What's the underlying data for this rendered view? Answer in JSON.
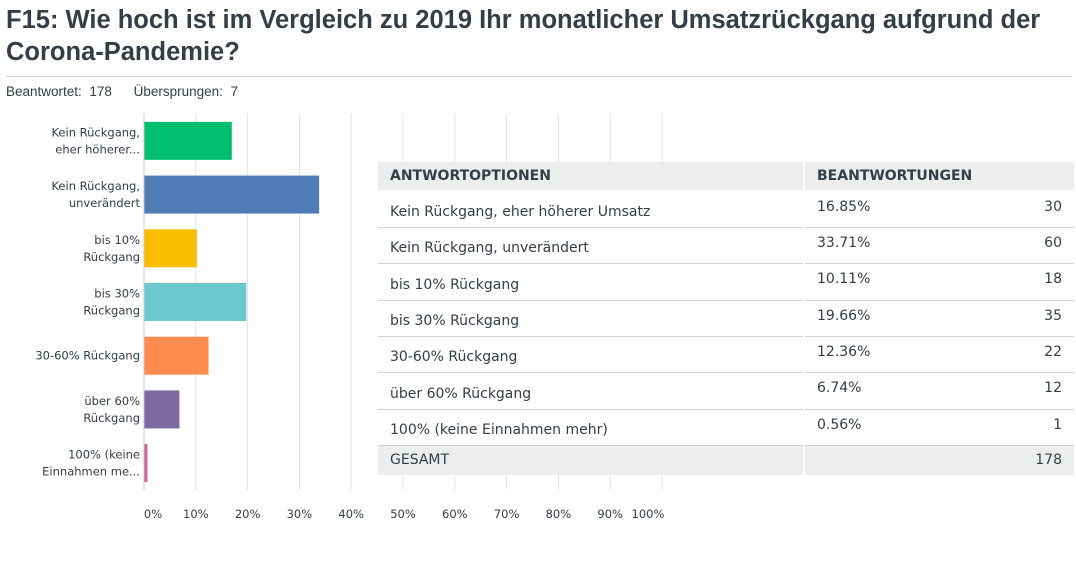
{
  "header": {
    "title": "F15: Wie hoch ist im Vergleich zu 2019 Ihr monatlicher Umsatzrückgang aufgrund der Corona-Pandemie?",
    "answered_label": "Beantwortet:",
    "answered_value": "178",
    "skipped_label": "Übersprungen:",
    "skipped_value": "7"
  },
  "chart_data": {
    "type": "bar",
    "orientation": "horizontal",
    "categories": [
      [
        "Kein Rückgang,",
        "eher höherer..."
      ],
      [
        "Kein Rückgang,",
        "unverändert"
      ],
      [
        "bis 10%",
        "Rückgang"
      ],
      [
        "bis 30%",
        "Rückgang"
      ],
      [
        "30-60% Rückgang"
      ],
      [
        "über 60%",
        "Rückgang"
      ],
      [
        "100% (keine",
        "Einnahmen me..."
      ]
    ],
    "values": [
      16.85,
      33.71,
      10.11,
      19.66,
      12.36,
      6.74,
      0.56
    ],
    "colors": [
      "#00bf6f",
      "#507cb6",
      "#f9be00",
      "#6bc8cd",
      "#ff8b4f",
      "#7f6aa1",
      "#d25f90"
    ],
    "xlim": [
      0,
      100
    ],
    "xticks": [
      "0%",
      "10%",
      "20%",
      "30%",
      "40%",
      "50%",
      "60%",
      "70%",
      "80%",
      "90%",
      "100%"
    ],
    "grid": true
  },
  "table": {
    "headers": [
      "ANTWORTOPTIONEN",
      "BEANTWORTUNGEN"
    ],
    "rows": [
      {
        "option": "Kein Rückgang, eher höherer Umsatz",
        "percent": "16.85%",
        "count": "30"
      },
      {
        "option": "Kein Rückgang, unverändert",
        "percent": "33.71%",
        "count": "60"
      },
      {
        "option": "bis 10% Rückgang",
        "percent": "10.11%",
        "count": "18"
      },
      {
        "option": "bis 30% Rückgang",
        "percent": "19.66%",
        "count": "35"
      },
      {
        "option": "30-60% Rückgang",
        "percent": "12.36%",
        "count": "22"
      },
      {
        "option": "über 60% Rückgang",
        "percent": "6.74%",
        "count": "12"
      },
      {
        "option": "100% (keine Einnahmen mehr)",
        "percent": "0.56%",
        "count": "1"
      }
    ],
    "total_label": "GESAMT",
    "total_value": "178"
  }
}
